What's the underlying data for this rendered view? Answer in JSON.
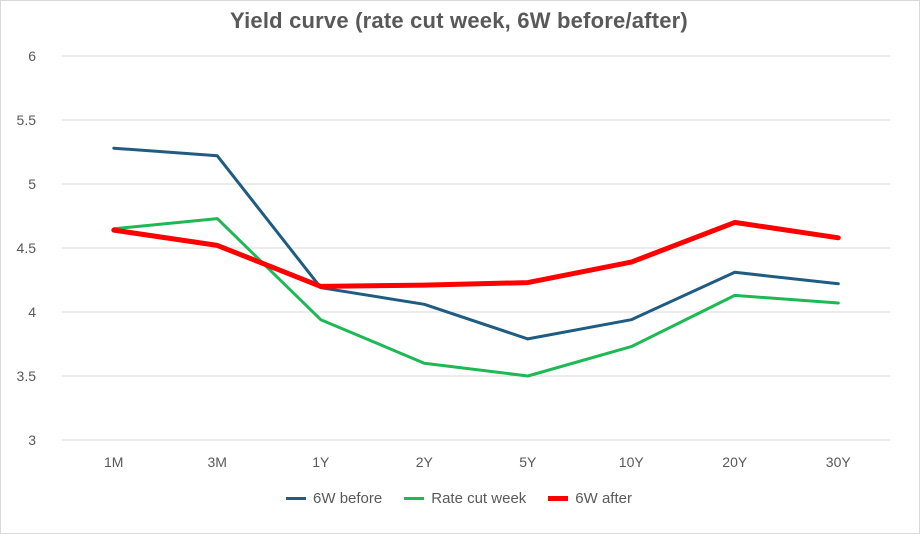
{
  "chart_data": {
    "type": "line",
    "title": "Yield curve (rate cut week, 6W before/after)",
    "categories": [
      "1M",
      "3M",
      "1Y",
      "2Y",
      "5Y",
      "10Y",
      "20Y",
      "30Y"
    ],
    "ylim": [
      3,
      6
    ],
    "yticks": [
      "3",
      "3.5",
      "4",
      "4.5",
      "5",
      "5.5",
      "6"
    ],
    "ytick_values": [
      3,
      3.5,
      4,
      4.5,
      5,
      5.5,
      6
    ],
    "grid": true,
    "legend_position": "bottom",
    "series": [
      {
        "name": "6W before",
        "color": "#1f5c82",
        "values": [
          5.28,
          5.22,
          4.19,
          4.06,
          3.79,
          3.94,
          4.31,
          4.22
        ]
      },
      {
        "name": "Rate cut week",
        "color": "#1db954",
        "values": [
          4.65,
          4.73,
          3.94,
          3.6,
          3.5,
          3.73,
          4.13,
          4.07
        ]
      },
      {
        "name": "6W after",
        "color": "#ff0000",
        "values": [
          4.64,
          4.52,
          4.2,
          4.21,
          4.23,
          4.39,
          4.7,
          4.58
        ]
      }
    ]
  }
}
